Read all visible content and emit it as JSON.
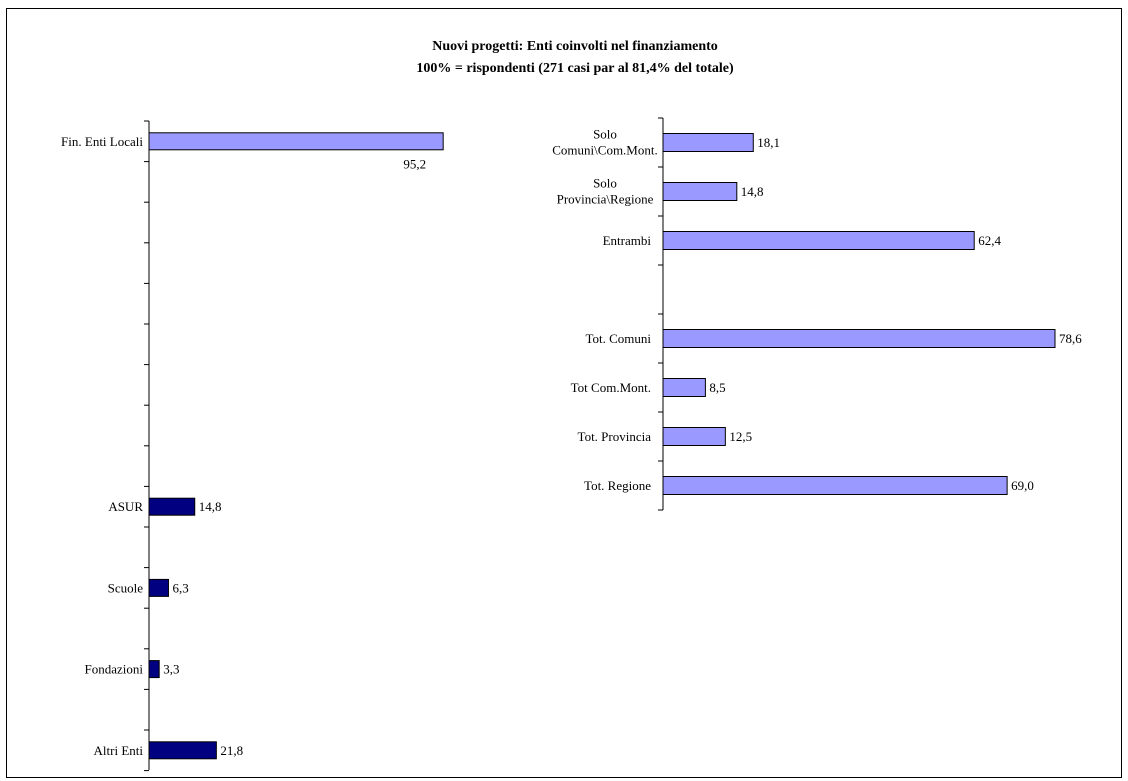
{
  "title": "Nuovi progetti: Enti coinvolti nel finanziamento",
  "subtitle": "100% = rispondenti (271 casi par al 81,4% del totale)",
  "colors": {
    "light_bar": "#9999ff",
    "dark_bar": "#000080"
  },
  "chart_data": [
    {
      "type": "bar",
      "orientation": "horizontal",
      "series": [
        {
          "categories": [
            "Fin. Enti Locali"
          ],
          "values": [
            95.2
          ],
          "labels": [
            "95,2"
          ],
          "color": "#9999ff"
        },
        {
          "categories": [
            "ASUR",
            "Scuole",
            "Fondazioni",
            "Altri Enti"
          ],
          "values": [
            14.8,
            6.3,
            3.3,
            21.8
          ],
          "labels": [
            "14,8",
            "6,3",
            "3,3",
            "21,8"
          ],
          "color": "#000080"
        }
      ],
      "xlim": [
        0,
        100
      ],
      "grid": false
    },
    {
      "type": "bar",
      "orientation": "horizontal",
      "categories": [
        "Solo\nComuni\\Com.Mont.",
        "Solo\nProvincia\\Regione",
        "Entrambi",
        "Tot. Comuni",
        "Tot Com.Mont.",
        "Tot. Provincia",
        "Tot. Regione"
      ],
      "values": [
        18.1,
        14.8,
        62.4,
        78.6,
        8.5,
        12.5,
        69.0
      ],
      "labels": [
        "18,1",
        "14,8",
        "62,4",
        "78,6",
        "8,5",
        "12,5",
        "69,0"
      ],
      "color": "#9999ff",
      "xlim": [
        0,
        100
      ],
      "grid": false
    }
  ]
}
